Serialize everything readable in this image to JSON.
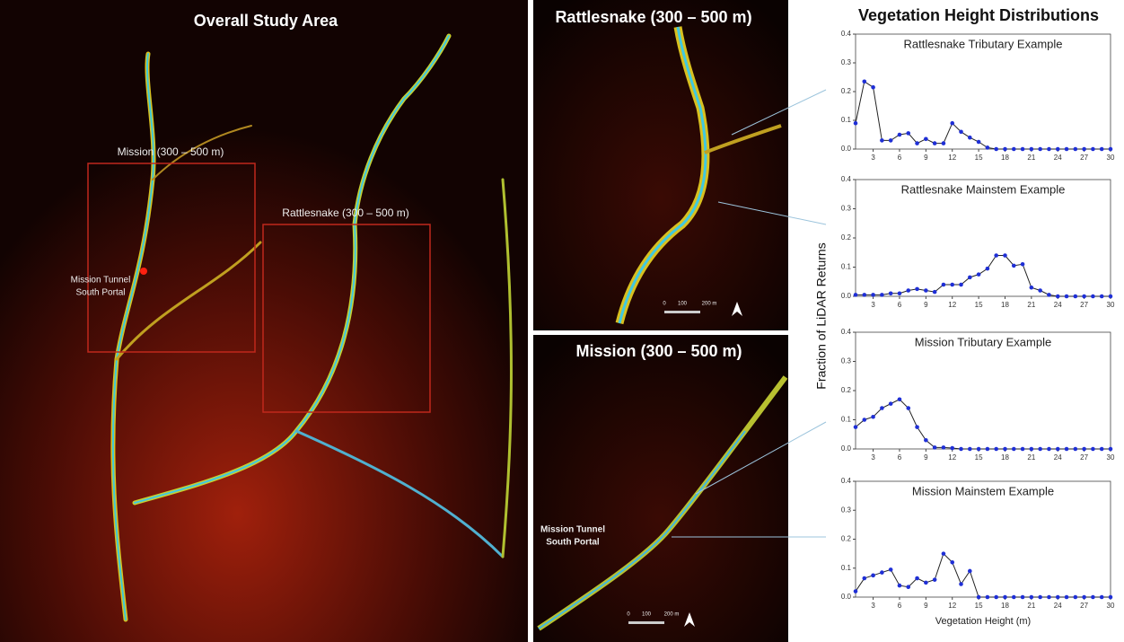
{
  "maps": {
    "overall": {
      "title": "Overall Study Area",
      "mission_box": "Mission (300 – 500 m)",
      "rattlesnake_box": "Rattlesnake (300 – 500 m)",
      "portal": [
        "Mission Tunnel",
        "South Portal"
      ]
    },
    "rattlesnake": {
      "title": "Rattlesnake (300 – 500 m)",
      "scale": [
        "0",
        "100",
        "200 m"
      ]
    },
    "mission": {
      "title": "Mission (300 – 500 m)",
      "portal": [
        "Mission Tunnel",
        "South Portal"
      ],
      "scale": [
        "0",
        "100",
        "200 m"
      ]
    }
  },
  "figure": {
    "heading": "Vegetation Height Distributions",
    "y_label": "Fraction of LiDAR Returns",
    "x_label": "Vegetation Height (m)"
  },
  "chart_data": [
    {
      "type": "line",
      "title": "Rattlesnake Tributary Example",
      "color": "#1f2fd6",
      "x": [
        1,
        2,
        3,
        4,
        5,
        6,
        7,
        8,
        9,
        10,
        11,
        12,
        13,
        14,
        15,
        16,
        17,
        18,
        19,
        20,
        21,
        22,
        23,
        24,
        25,
        26,
        27,
        28,
        29,
        30
      ],
      "values": [
        0.09,
        0.235,
        0.215,
        0.03,
        0.03,
        0.05,
        0.055,
        0.02,
        0.035,
        0.02,
        0.02,
        0.09,
        0.06,
        0.04,
        0.025,
        0.005,
        0,
        0,
        0,
        0,
        0,
        0,
        0,
        0,
        0,
        0,
        0,
        0,
        0,
        0
      ],
      "xlim": [
        1,
        30
      ],
      "xticks": [
        3,
        6,
        9,
        12,
        15,
        18,
        21,
        24,
        27,
        30
      ],
      "ylim": [
        0,
        0.4
      ],
      "yticks": [
        {
          "value": 0,
          "label": "0.0"
        },
        0.1,
        0.2,
        0.3,
        0.4
      ]
    },
    {
      "type": "line",
      "title": "Rattlesnake Mainstem Example",
      "color": "#1f2fd6",
      "x": [
        1,
        2,
        3,
        4,
        5,
        6,
        7,
        8,
        9,
        10,
        11,
        12,
        13,
        14,
        15,
        16,
        17,
        18,
        19,
        20,
        21,
        22,
        23,
        24,
        25,
        26,
        27,
        28,
        29,
        30
      ],
      "values": [
        0.005,
        0.005,
        0.005,
        0.005,
        0.01,
        0.01,
        0.02,
        0.025,
        0.02,
        0.015,
        0.04,
        0.04,
        0.04,
        0.065,
        0.075,
        0.095,
        0.14,
        0.14,
        0.105,
        0.11,
        0.03,
        0.02,
        0.005,
        0,
        0,
        0,
        0,
        0,
        0,
        0
      ],
      "xlim": [
        1,
        30
      ],
      "xticks": [
        3,
        6,
        9,
        12,
        15,
        18,
        21,
        24,
        27,
        30
      ],
      "ylim": [
        0,
        0.4
      ],
      "yticks": [
        {
          "value": 0,
          "label": "0.0"
        },
        0.1,
        0.2,
        0.3,
        0.4
      ]
    },
    {
      "type": "line",
      "title": "Mission Tributary Example",
      "color": "#1f2fd6",
      "x": [
        1,
        2,
        3,
        4,
        5,
        6,
        7,
        8,
        9,
        10,
        11,
        12,
        13,
        14,
        15,
        16,
        17,
        18,
        19,
        20,
        21,
        22,
        23,
        24,
        25,
        26,
        27,
        28,
        29,
        30
      ],
      "values": [
        0.075,
        0.1,
        0.11,
        0.14,
        0.155,
        0.17,
        0.14,
        0.075,
        0.03,
        0.005,
        0.005,
        0.003,
        0,
        0,
        0,
        0,
        0,
        0,
        0,
        0,
        0,
        0,
        0,
        0,
        0,
        0,
        0,
        0,
        0,
        0
      ],
      "xlim": [
        1,
        30
      ],
      "xticks": [
        3,
        6,
        9,
        12,
        15,
        18,
        21,
        24,
        27,
        30
      ],
      "ylim": [
        0,
        0.4
      ],
      "yticks": [
        {
          "value": 0,
          "label": "0.0"
        },
        0.1,
        0.2,
        0.3,
        0.4
      ]
    },
    {
      "type": "line",
      "title": "Mission Mainstem Example",
      "color": "#1f2fd6",
      "x": [
        1,
        2,
        3,
        4,
        5,
        6,
        7,
        8,
        9,
        10,
        11,
        12,
        13,
        14,
        15,
        16,
        17,
        18,
        19,
        20,
        21,
        22,
        23,
        24,
        25,
        26,
        27,
        28,
        29,
        30
      ],
      "values": [
        0.02,
        0.065,
        0.075,
        0.085,
        0.095,
        0.04,
        0.035,
        0.065,
        0.05,
        0.06,
        0.15,
        0.12,
        0.045,
        0.09,
        0,
        0,
        0,
        0,
        0,
        0,
        0,
        0,
        0,
        0,
        0,
        0,
        0,
        0,
        0,
        0
      ],
      "xlim": [
        1,
        30
      ],
      "xticks": [
        3,
        6,
        9,
        12,
        15,
        18,
        21,
        24,
        27,
        30
      ],
      "ylim": [
        0,
        0.4
      ],
      "yticks": [
        {
          "value": 0,
          "label": "0.0"
        },
        0.1,
        0.2,
        0.3,
        0.4
      ]
    }
  ]
}
